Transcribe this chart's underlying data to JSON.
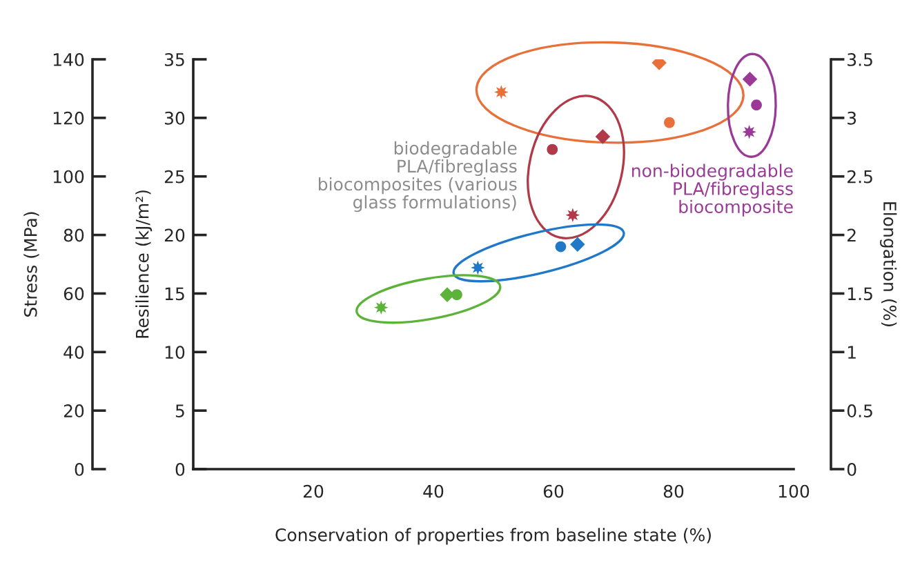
{
  "chart_data": {
    "type": "scatter",
    "xlabel": "Conservation of properties from baseline state (%)",
    "ylabel": "Resilience (kJ/m²)",
    "y2label": "Elongation (%)",
    "y3label": "Stress (MPa)",
    "xlim": [
      0,
      100
    ],
    "xticks": [
      20,
      40,
      60,
      80,
      100
    ],
    "ylim": [
      0,
      35
    ],
    "yticks": [
      0,
      5,
      10,
      15,
      20,
      25,
      30,
      35
    ],
    "y2lim": [
      0,
      3.5
    ],
    "y2ticks": [
      0,
      0.5,
      1,
      1.5,
      2,
      2.5,
      3,
      3.5
    ],
    "y3lim": [
      0,
      140
    ],
    "y3ticks": [
      0,
      20,
      40,
      60,
      80,
      100,
      120,
      140
    ],
    "grid": false,
    "annotations": [
      "biodegradable\nPLA/fibreglass\nbiocomposites (various\nglass formulations)",
      "non-biodegradable\nPLA/fibreglass\nbiocomposite"
    ],
    "series": [
      {
        "marker": "star",
        "x": [
          51.3,
          63.2,
          47.4,
          31.3,
          92.6
        ],
        "values": [
          32.2,
          21.7,
          17.2,
          13.8,
          28.8
        ],
        "colors": [
          "#e8703a",
          "#b03a48",
          "#1f78c8",
          "#5db33a",
          "#9a3a96"
        ]
      },
      {
        "marker": "diamond",
        "x": [
          77.6,
          68.2,
          64.0,
          42.3,
          92.7
        ],
        "values": [
          34.7,
          28.4,
          19.2,
          14.9,
          33.3
        ],
        "colors": [
          "#e8703a",
          "#b03a48",
          "#1f78c8",
          "#5db33a",
          "#9a3a96"
        ]
      },
      {
        "marker": "circle",
        "x": [
          79.3,
          59.8,
          61.2,
          43.9,
          93.8
        ],
        "values": [
          29.6,
          27.3,
          19.0,
          14.9,
          31.1
        ],
        "colors": [
          "#e8703a",
          "#b03a48",
          "#1f78c8",
          "#5db33a",
          "#9a3a96"
        ]
      }
    ]
  }
}
